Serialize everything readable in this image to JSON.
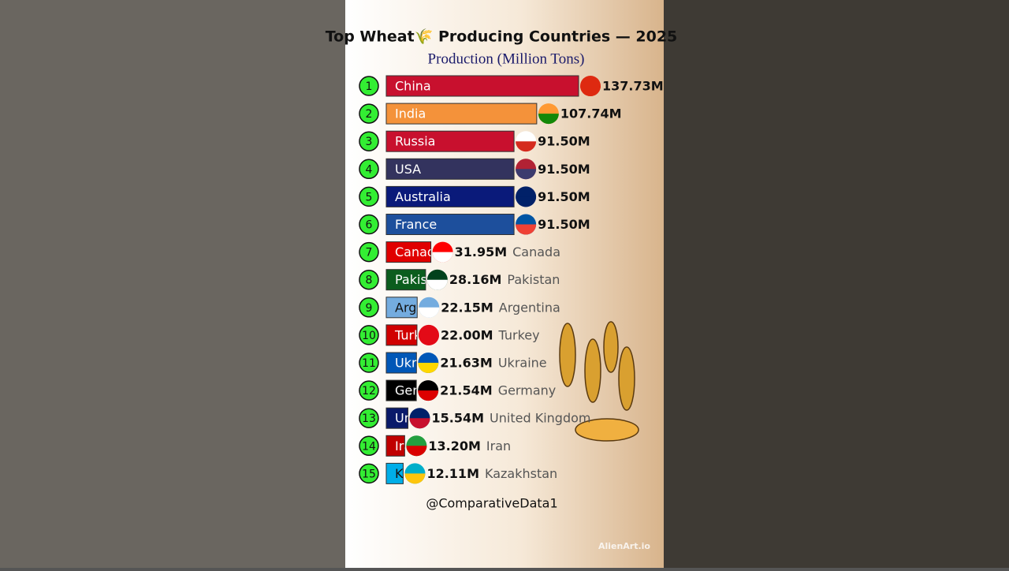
{
  "chart_data": {
    "type": "bar",
    "title": "Top Wheat🌾 Producing Countries — 2025",
    "subtitle": "Production (Million Tons)",
    "ranks": [
      1,
      2,
      3,
      4,
      5,
      6,
      7,
      8,
      9,
      10,
      11,
      12,
      13,
      14,
      15
    ],
    "categories": [
      "China",
      "India",
      "Russia",
      "USA",
      "Australia",
      "France",
      "Canada",
      "Pakistan",
      "Argentina",
      "Turkey",
      "Ukraine",
      "Germany",
      "United Kingdom",
      "Iran",
      "Kazakhstan"
    ],
    "values": [
      137.73,
      107.74,
      91.5,
      91.5,
      91.5,
      91.5,
      31.95,
      28.16,
      22.15,
      22.0,
      21.63,
      21.54,
      15.54,
      13.2,
      12.11
    ],
    "value_labels": [
      "137.73M",
      "107.74M",
      "91.50M",
      "91.50M",
      "91.50M",
      "91.50M",
      "31.95M",
      "28.16M",
      "22.15M",
      "22.00M",
      "21.63M",
      "21.54M",
      "15.54M",
      "13.20M",
      "12.11M"
    ],
    "colors": [
      "#c8102e",
      "#f4923a",
      "#c8102e",
      "#33335e",
      "#0a1a7a",
      "#1d4f9c",
      "#e00000",
      "#0b5d1e",
      "#74acdf",
      "#d00000",
      "#0057b7",
      "#000000",
      "#0a1a6a",
      "#c00000",
      "#00aee8"
    ],
    "credit": "@ComparativeData1",
    "watermark": "AlienArt.io"
  }
}
